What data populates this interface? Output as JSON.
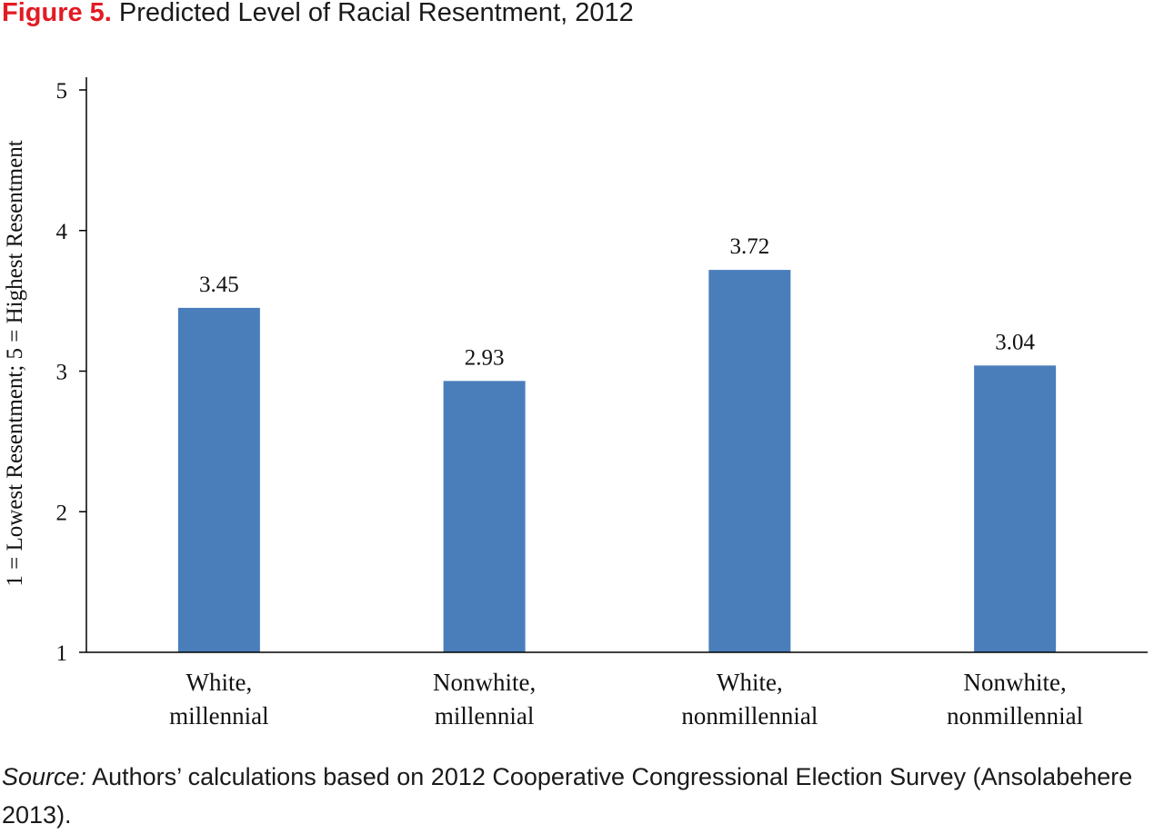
{
  "figure": {
    "label": "Figure 5.",
    "title": "Predicted Level of Racial Resentment, 2012"
  },
  "source": {
    "label": "Source:",
    "text": "Authors’ calculations based on 2012 Cooperative Congressional Election Survey (Ansolabehere 2013)."
  },
  "chart_data": {
    "type": "bar",
    "title": "Predicted Level of Racial Resentment, 2012",
    "ylabel": "1 = Lowest Resentment; 5 = Highest Resentment",
    "xlabel": "",
    "ylim": [
      1,
      5
    ],
    "yticks": [
      1,
      2,
      3,
      4,
      5
    ],
    "categories": [
      [
        "White,",
        "millennial"
      ],
      [
        "Nonwhite,",
        "millennial"
      ],
      [
        "White,",
        "nonmillennial"
      ],
      [
        "Nonwhite,",
        "nonmillennial"
      ]
    ],
    "values": [
      3.45,
      2.93,
      3.72,
      3.04
    ],
    "data_labels": [
      "3.45",
      "2.93",
      "3.72",
      "3.04"
    ],
    "bar_color": "#4a7ebb",
    "grid": false,
    "legend": "none"
  }
}
